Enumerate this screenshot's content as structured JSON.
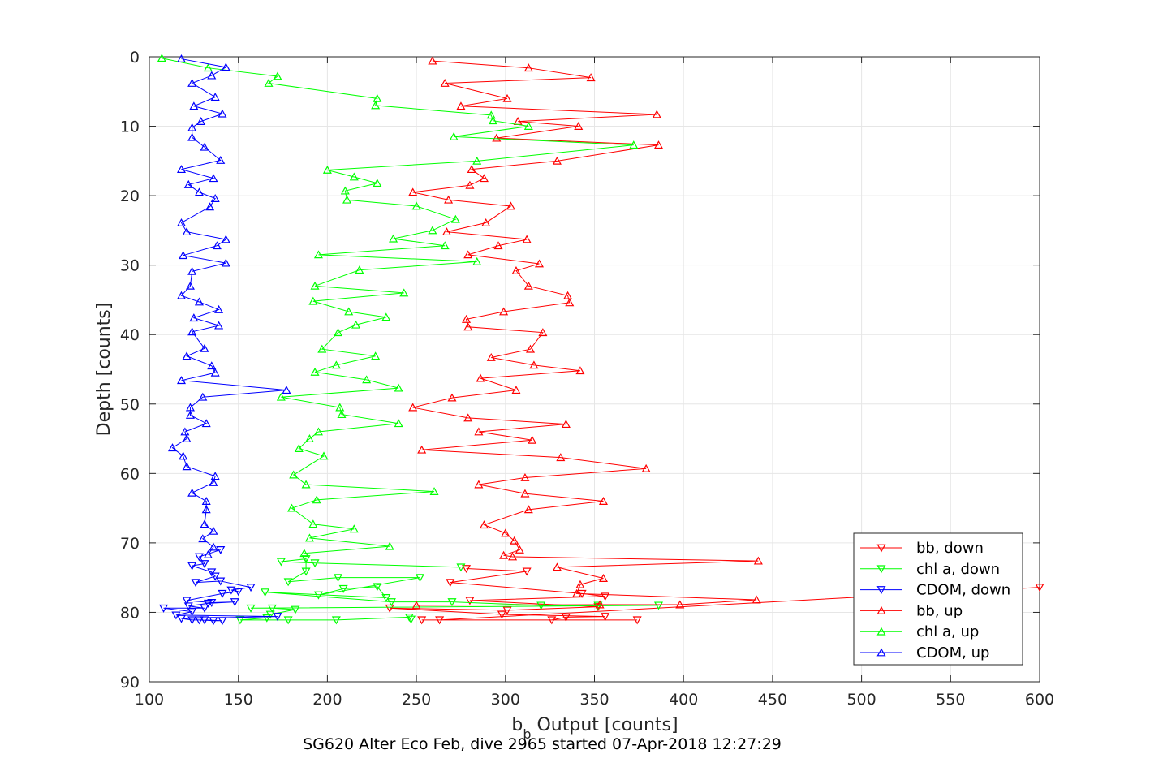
{
  "chart_data": {
    "type": "line",
    "xlabel_main": "b",
    "xlabel_sub": "b",
    "xlabel_rest": " Output [counts]",
    "ylabel": "Depth [counts]",
    "subtitle": "SG620 Alter Eco Feb, dive 2965 started 07-Apr-2018 12:27:29",
    "xlim": [
      100,
      600
    ],
    "ylim": [
      0,
      90
    ],
    "y_reversed": true,
    "grid": true,
    "legend_position": "bottom-right",
    "xticks": [
      "100",
      "150",
      "200",
      "250",
      "300",
      "350",
      "400",
      "450",
      "500",
      "550",
      "600"
    ],
    "yticks": [
      "0",
      "10",
      "20",
      "30",
      "40",
      "50",
      "60",
      "70",
      "80",
      "90"
    ],
    "series": [
      {
        "name": "bb, down",
        "color": "#ff0000",
        "marker": "down",
        "points": [
          [
            278,
            73.7
          ],
          [
            312,
            74.1
          ],
          [
            269,
            75.7
          ],
          [
            343,
            77.3
          ],
          [
            356,
            77.7
          ],
          [
            280,
            78.3
          ],
          [
            352,
            79.2
          ],
          [
            301,
            79.7
          ],
          [
            235,
            79.4
          ],
          [
            298,
            80.3
          ],
          [
            356,
            80.6
          ],
          [
            334,
            80.7
          ],
          [
            326,
            81.1
          ],
          [
            374,
            81.1
          ],
          [
            253,
            81.1
          ],
          [
            263,
            81.1
          ],
          [
            600,
            76.4
          ]
        ]
      },
      {
        "name": "chl a, down",
        "color": "#00ff00",
        "marker": "down",
        "points": [
          [
            275,
            73.5
          ],
          [
            193,
            72.9
          ],
          [
            174,
            72.7
          ],
          [
            188,
            72.3
          ],
          [
            188,
            74.1
          ],
          [
            178,
            75.6
          ],
          [
            206,
            75.0
          ],
          [
            252,
            75.0
          ],
          [
            195,
            77.5
          ],
          [
            209,
            76.6
          ],
          [
            228,
            76.3
          ],
          [
            233,
            77.9
          ],
          [
            165,
            77.1
          ],
          [
            236,
            78.5
          ],
          [
            270,
            78.5
          ],
          [
            320,
            79.0
          ],
          [
            352,
            79.0
          ],
          [
            386,
            79.0
          ],
          [
            157,
            79.4
          ],
          [
            169,
            79.4
          ],
          [
            182,
            79.6
          ],
          [
            168,
            80.3
          ],
          [
            166,
            80.8
          ],
          [
            151,
            81.1
          ],
          [
            178,
            81.1
          ],
          [
            205,
            81.1
          ],
          [
            246,
            80.7
          ],
          [
            247,
            81.0
          ]
        ]
      },
      {
        "name": "CDOM, down",
        "color": "#0000ff",
        "marker": "down",
        "points": [
          [
            140,
            71.0
          ],
          [
            128,
            72.0
          ],
          [
            131,
            73.0
          ],
          [
            124,
            73.3
          ],
          [
            135,
            74.2
          ],
          [
            137,
            74.8
          ],
          [
            126,
            75.7
          ],
          [
            140,
            75.5
          ],
          [
            157,
            76.4
          ],
          [
            146,
            76.8
          ],
          [
            150,
            77.0
          ],
          [
            141,
            77.3
          ],
          [
            121,
            78.3
          ],
          [
            135,
            78.6
          ],
          [
            148,
            78.5
          ],
          [
            133,
            78.7
          ],
          [
            122,
            79.1
          ],
          [
            131,
            79.4
          ],
          [
            108,
            79.4
          ],
          [
            124,
            79.9
          ],
          [
            115,
            80.4
          ],
          [
            172,
            80.6
          ],
          [
            118,
            80.9
          ],
          [
            124,
            81.1
          ],
          [
            128,
            81.1
          ],
          [
            136,
            81.2
          ],
          [
            141,
            81.2
          ],
          [
            131,
            81.1
          ]
        ]
      },
      {
        "name": "bb, up",
        "color": "#ff0000",
        "marker": "up",
        "points": [
          [
            259,
            0.6
          ],
          [
            313,
            1.6
          ],
          [
            348,
            3.0
          ],
          [
            266,
            3.8
          ],
          [
            301,
            6.0
          ],
          [
            275,
            7.1
          ],
          [
            385,
            8.3
          ],
          [
            307,
            9.3
          ],
          [
            341,
            10.0
          ],
          [
            295,
            11.7
          ],
          [
            386,
            12.7
          ],
          [
            329,
            15.0
          ],
          [
            281,
            16.2
          ],
          [
            288,
            17.5
          ],
          [
            280,
            18.5
          ],
          [
            248,
            19.5
          ],
          [
            268,
            20.6
          ],
          [
            303,
            21.5
          ],
          [
            289,
            23.9
          ],
          [
            267,
            25.2
          ],
          [
            312,
            26.3
          ],
          [
            296,
            27.2
          ],
          [
            279,
            28.5
          ],
          [
            319,
            29.8
          ],
          [
            306,
            30.8
          ],
          [
            313,
            33.0
          ],
          [
            335,
            34.4
          ],
          [
            336,
            35.4
          ],
          [
            299,
            36.7
          ],
          [
            278,
            37.8
          ],
          [
            279,
            38.9
          ],
          [
            321,
            39.7
          ],
          [
            314,
            42.1
          ],
          [
            292,
            43.3
          ],
          [
            316,
            44.4
          ],
          [
            342,
            45.2
          ],
          [
            286,
            46.3
          ],
          [
            306,
            48.0
          ],
          [
            270,
            49.1
          ],
          [
            248,
            50.5
          ],
          [
            279,
            52.0
          ],
          [
            334,
            52.9
          ],
          [
            285,
            54.0
          ],
          [
            315,
            55.2
          ],
          [
            253,
            56.6
          ],
          [
            331,
            57.7
          ],
          [
            379,
            59.3
          ],
          [
            311,
            60.6
          ],
          [
            285,
            61.6
          ],
          [
            311,
            62.9
          ],
          [
            355,
            64.0
          ],
          [
            313,
            65.2
          ],
          [
            288,
            67.4
          ],
          [
            300,
            68.6
          ],
          [
            305,
            69.7
          ],
          [
            308,
            71.0
          ],
          [
            299,
            71.8
          ],
          [
            304,
            72.0
          ],
          [
            442,
            72.6
          ],
          [
            329,
            73.5
          ],
          [
            355,
            75.1
          ],
          [
            342,
            76.0
          ],
          [
            340,
            77.3
          ],
          [
            441,
            78.2
          ],
          [
            398,
            78.9
          ],
          [
            353,
            78.9
          ],
          [
            250,
            79.0
          ]
        ]
      },
      {
        "name": "chl a, up",
        "color": "#00ff00",
        "marker": "up",
        "points": [
          [
            107,
            0.2
          ],
          [
            133,
            1.6
          ],
          [
            172,
            2.8
          ],
          [
            167,
            3.8
          ],
          [
            228,
            6.0
          ],
          [
            227,
            7.0
          ],
          [
            292,
            8.4
          ],
          [
            293,
            9.2
          ],
          [
            313,
            10.0
          ],
          [
            271,
            11.5
          ],
          [
            372,
            12.7
          ],
          [
            284,
            15.0
          ],
          [
            200,
            16.3
          ],
          [
            215,
            17.3
          ],
          [
            228,
            18.2
          ],
          [
            210,
            19.3
          ],
          [
            211,
            20.6
          ],
          [
            250,
            21.5
          ],
          [
            272,
            23.4
          ],
          [
            259,
            25.0
          ],
          [
            237,
            26.2
          ],
          [
            266,
            27.2
          ],
          [
            195,
            28.5
          ],
          [
            284,
            29.5
          ],
          [
            218,
            30.7
          ],
          [
            193,
            33.0
          ],
          [
            243,
            34.0
          ],
          [
            192,
            35.2
          ],
          [
            212,
            36.7
          ],
          [
            233,
            37.5
          ],
          [
            216,
            38.6
          ],
          [
            206,
            39.7
          ],
          [
            197,
            42.1
          ],
          [
            227,
            43.1
          ],
          [
            205,
            44.4
          ],
          [
            193,
            45.4
          ],
          [
            222,
            46.5
          ],
          [
            240,
            47.7
          ],
          [
            174,
            49.0
          ],
          [
            207,
            50.5
          ],
          [
            208,
            51.5
          ],
          [
            240,
            52.8
          ],
          [
            195,
            54.0
          ],
          [
            190,
            55.0
          ],
          [
            184,
            56.4
          ],
          [
            198,
            57.5
          ],
          [
            181,
            60.2
          ],
          [
            188,
            61.6
          ],
          [
            260,
            62.6
          ],
          [
            194,
            63.8
          ],
          [
            180,
            65.0
          ],
          [
            192,
            67.3
          ],
          [
            215,
            68.0
          ],
          [
            190,
            69.3
          ],
          [
            235,
            70.5
          ],
          [
            187,
            71.5
          ]
        ]
      },
      {
        "name": "CDOM, up",
        "color": "#0000ff",
        "marker": "up",
        "points": [
          [
            118,
            0.3
          ],
          [
            143,
            1.5
          ],
          [
            135,
            2.7
          ],
          [
            124,
            3.8
          ],
          [
            137,
            5.8
          ],
          [
            125,
            7.1
          ],
          [
            141,
            8.2
          ],
          [
            129,
            9.3
          ],
          [
            124,
            10.2
          ],
          [
            124,
            11.6
          ],
          [
            131,
            13.0
          ],
          [
            140,
            14.9
          ],
          [
            118,
            16.2
          ],
          [
            136,
            17.5
          ],
          [
            122,
            18.4
          ],
          [
            128,
            19.5
          ],
          [
            137,
            20.4
          ],
          [
            134,
            21.6
          ],
          [
            118,
            23.9
          ],
          [
            121,
            25.2
          ],
          [
            143,
            26.3
          ],
          [
            138,
            27.2
          ],
          [
            119,
            28.6
          ],
          [
            143,
            29.7
          ],
          [
            124,
            30.9
          ],
          [
            123,
            33.0
          ],
          [
            118,
            34.4
          ],
          [
            128,
            35.3
          ],
          [
            139,
            36.4
          ],
          [
            125,
            37.6
          ],
          [
            139,
            38.7
          ],
          [
            124,
            39.6
          ],
          [
            131,
            42.0
          ],
          [
            121,
            43.1
          ],
          [
            135,
            44.5
          ],
          [
            137,
            45.5
          ],
          [
            118,
            46.6
          ],
          [
            177,
            48.0
          ],
          [
            130,
            49.0
          ],
          [
            123,
            50.5
          ],
          [
            123,
            51.6
          ],
          [
            132,
            52.8
          ],
          [
            120,
            54.0
          ],
          [
            121,
            55.0
          ],
          [
            113,
            56.3
          ],
          [
            119,
            57.5
          ],
          [
            121,
            59.0
          ],
          [
            137,
            60.4
          ],
          [
            136,
            61.3
          ],
          [
            124,
            62.8
          ],
          [
            132,
            64.0
          ],
          [
            132,
            65.2
          ],
          [
            131,
            67.3
          ],
          [
            136,
            68.3
          ],
          [
            130,
            69.4
          ],
          [
            136,
            70.6
          ],
          [
            133,
            71.7
          ]
        ]
      }
    ]
  }
}
